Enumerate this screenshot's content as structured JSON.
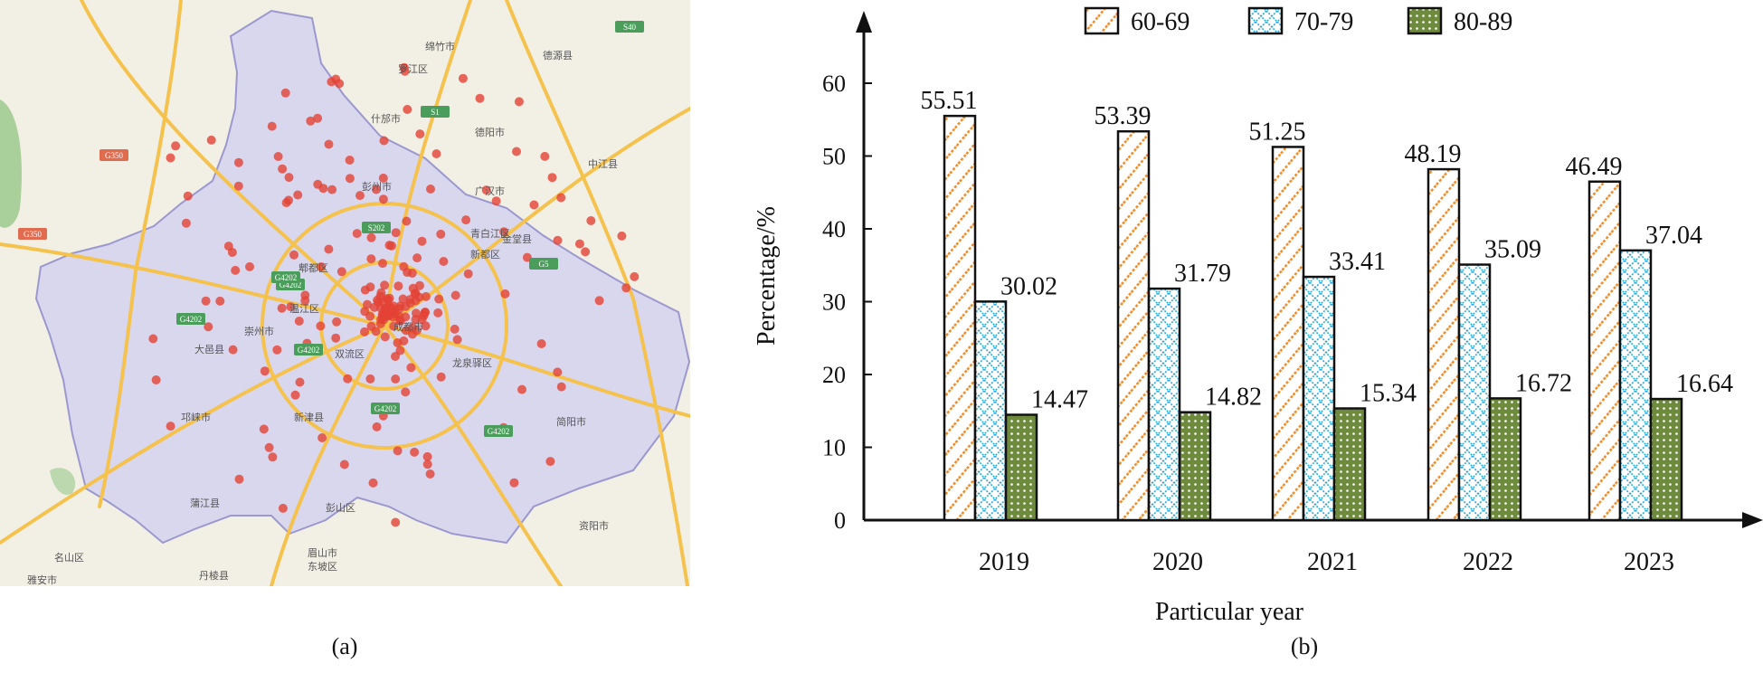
{
  "captions": {
    "a": "(a)",
    "b": "(b)"
  },
  "map": {
    "labels": [
      "广汉市",
      "什邡市",
      "德阳市",
      "彭州市",
      "中江县",
      "青白江区",
      "新都区",
      "金堂县",
      "郫都区",
      "温江区",
      "成都市",
      "崇州市",
      "双流区",
      "龙泉驿区",
      "大邑县",
      "邛崃市",
      "新津县",
      "简阳市",
      "蒲江县",
      "彭山区",
      "眉山市",
      "东坡区",
      "名山区",
      "雅安市",
      "丹棱县",
      "资阳市",
      "罗江区",
      "绵竹市",
      "德源县"
    ],
    "road_shields": [
      "G4202",
      "G4202",
      "G4202",
      "G4202",
      "G4202",
      "G4202",
      "S202",
      "G5",
      "S40",
      "S1",
      "G350",
      "G350"
    ],
    "colors": {
      "land": "#f2efe4",
      "region": "#d9d7ee",
      "region_border": "#9b98cf",
      "road": "#f4c24d",
      "point": "#e34234"
    }
  },
  "chart_data": {
    "type": "bar",
    "categories": [
      "2019",
      "2020",
      "2021",
      "2022",
      "2023"
    ],
    "series": [
      {
        "name": "60-69",
        "values": [
          55.51,
          53.39,
          51.25,
          48.19,
          46.49
        ],
        "color": "#f08a24",
        "pattern": "diagonal-hatch"
      },
      {
        "name": "70-79",
        "values": [
          30.02,
          31.79,
          33.41,
          35.09,
          37.04
        ],
        "color": "#2aa8e0",
        "pattern": "crosshatch"
      },
      {
        "name": "80-89",
        "values": [
          14.47,
          14.82,
          15.34,
          16.72,
          16.64
        ],
        "color": "#6e8b3d",
        "pattern": "dotted"
      }
    ],
    "value_labels": [
      [
        "55.51",
        "53.39",
        "51.25",
        "48.19",
        "46.49"
      ],
      [
        "30.02",
        "31.79",
        "33.41",
        "35.09",
        "37.04"
      ],
      [
        "14.47",
        "14.82",
        "15.34",
        "16.72",
        "16.64"
      ]
    ],
    "xlabel": "Particular year",
    "ylabel": "Percentage/%",
    "ylim": [
      0,
      60
    ],
    "yticks": [
      0,
      10,
      20,
      30,
      40,
      50,
      60
    ],
    "grid": false,
    "legend_position": "top"
  }
}
